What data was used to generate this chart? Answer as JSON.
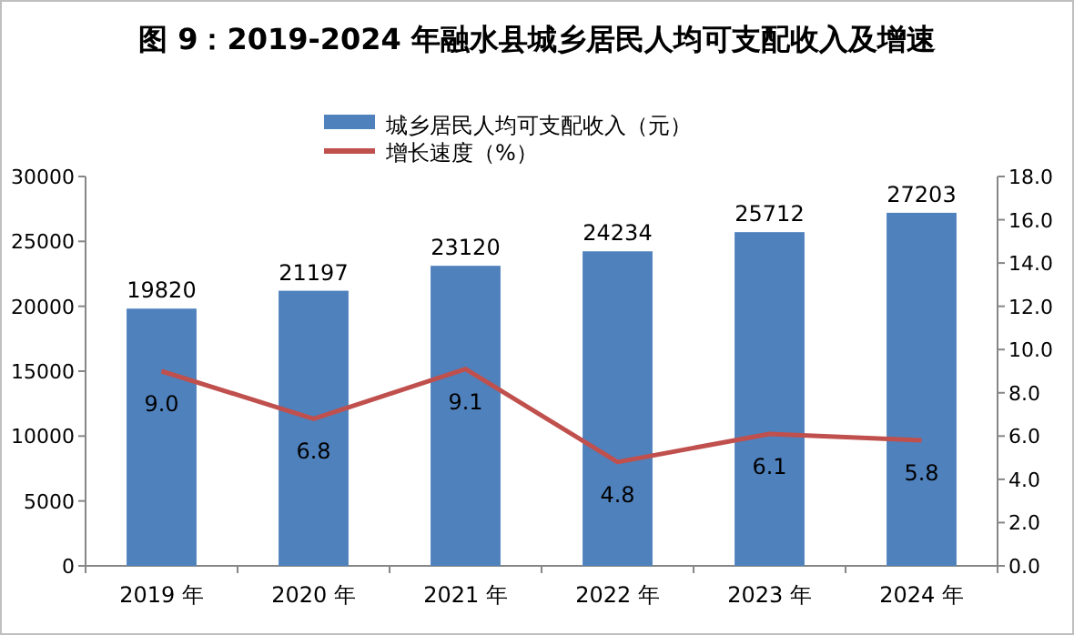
{
  "chart_data": {
    "type": "bar",
    "title": "图 9：2019-2024 年融水县城乡居民人均可支配收入及增速",
    "categories": [
      "2019 年",
      "2020 年",
      "2021 年",
      "2022 年",
      "2023 年",
      "2024 年"
    ],
    "series": [
      {
        "name": "城乡居民人均可支配收入（元）",
        "color": "#4f81bd",
        "values": [
          19820,
          21197,
          23120,
          24234,
          25712,
          27203
        ],
        "value_labels": [
          "19820",
          "21197",
          "23120",
          "24234",
          "25712",
          "27203"
        ]
      },
      {
        "name": "增长速度（%）",
        "type": "line",
        "axis": "y2",
        "color": "#c0504d",
        "line_style": "solid",
        "marker": "none",
        "values": [
          9.0,
          6.8,
          9.1,
          4.8,
          6.1,
          5.8
        ],
        "value_labels": [
          "9.0",
          "6.8",
          "9.1",
          "4.8",
          "6.1",
          "5.8"
        ]
      }
    ],
    "ylim": [
      0,
      30000
    ],
    "yticks": [
      0,
      5000,
      10000,
      15000,
      20000,
      25000,
      30000
    ],
    "y2lim": [
      0,
      18
    ],
    "y2ticks": [
      {
        "value": 0,
        "label": "0.0"
      },
      {
        "value": 2,
        "label": "2.0"
      },
      {
        "value": 4,
        "label": "4.0"
      },
      {
        "value": 6,
        "label": "6.0"
      },
      {
        "value": 8,
        "label": "8.0"
      },
      {
        "value": 10,
        "label": "10.0"
      },
      {
        "value": 12,
        "label": "12.0"
      },
      {
        "value": 14,
        "label": "14.0"
      },
      {
        "value": 16,
        "label": "16.0"
      },
      {
        "value": 18,
        "label": "18.0"
      }
    ],
    "legend": "top",
    "grid": false
  }
}
